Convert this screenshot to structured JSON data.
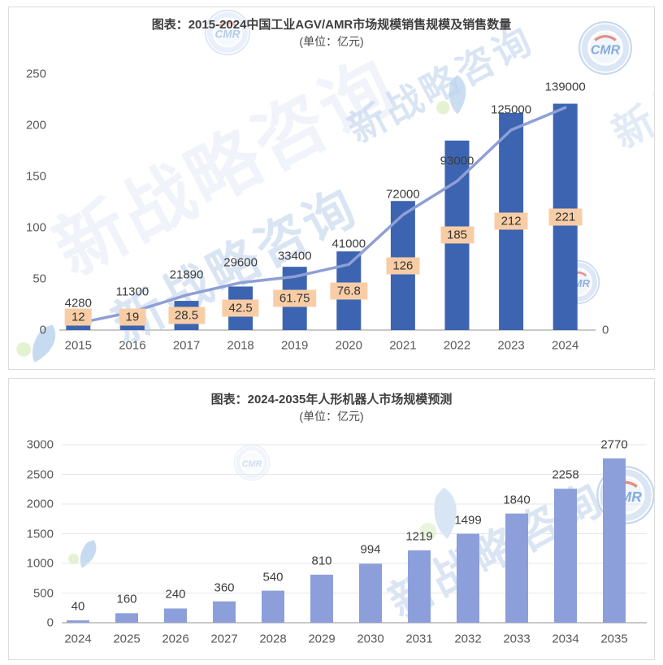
{
  "watermark": {
    "text": "新战略咨询",
    "badge_text": "CMR"
  },
  "chart_data": [
    {
      "type": "bar+line",
      "title": "图表：2015-2024中国工业AGV/AMR市场规模销售规模及销售数量",
      "subtitle": "(单位：亿元)",
      "categories": [
        "2015",
        "2016",
        "2017",
        "2018",
        "2019",
        "2020",
        "2021",
        "2022",
        "2023",
        "2024"
      ],
      "series": [
        {
          "type": "bar",
          "axis": "left",
          "values": [
            12,
            19,
            28.5,
            42.5,
            61.75,
            76.8,
            126,
            185,
            212,
            221
          ],
          "labels": [
            "12",
            "19",
            "28.5",
            "42.5",
            "61.75",
            "76.8",
            "126",
            "185",
            "212",
            "221"
          ]
        },
        {
          "type": "line",
          "axis": "right",
          "values": [
            4280,
            11300,
            21890,
            29600,
            33400,
            41000,
            72000,
            93000,
            125000,
            139000
          ],
          "labels": [
            "4280",
            "11300",
            "21890",
            "29600",
            "33400",
            "41000",
            "72000",
            "93000",
            "125000",
            "139000"
          ]
        }
      ],
      "left_axis": {
        "min": 0,
        "max": 250,
        "ticks": [
          0,
          50,
          100,
          150,
          200,
          250
        ]
      },
      "right_axis": {
        "min": 0,
        "max": 160000,
        "ticks": [
          0,
          20000,
          40000,
          60000,
          80000,
          100000,
          120000,
          140000,
          160000
        ]
      },
      "grid": false,
      "legend": "none",
      "colors": {
        "bar": "#3c64b1",
        "line": "#8e9fd5",
        "bar_label_bg": "#f8cda6"
      }
    },
    {
      "type": "bar",
      "title": "图表：2024-2035年人形机器人市场规模预测",
      "subtitle": "(单位：亿元)",
      "categories": [
        "2024",
        "2025",
        "2026",
        "2027",
        "2028",
        "2029",
        "2030",
        "2031",
        "2032",
        "2033",
        "2034",
        "2035"
      ],
      "series": [
        {
          "type": "bar",
          "axis": "left",
          "values": [
            40,
            160,
            240,
            360,
            540,
            810,
            994,
            1219,
            1499,
            1840,
            2258,
            2770
          ],
          "labels": [
            "40",
            "160",
            "240",
            "360",
            "540",
            "810",
            "994",
            "1219",
            "1499",
            "1840",
            "2258",
            "2770"
          ]
        }
      ],
      "left_axis": {
        "min": 0,
        "max": 3000,
        "ticks": [
          0,
          500,
          1000,
          1500,
          2000,
          2500,
          3000
        ]
      },
      "grid": true,
      "legend": "none",
      "colors": {
        "bar": "#8d9fda"
      }
    }
  ]
}
